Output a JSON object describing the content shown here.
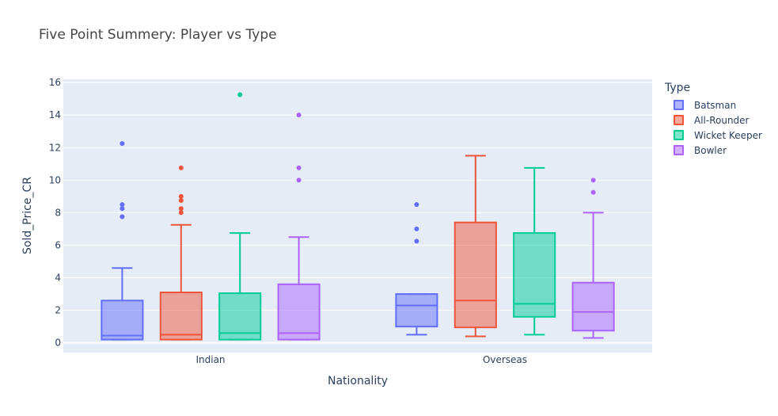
{
  "chart_data": {
    "type": "box",
    "title": "Five Point Summery: Player vs Type",
    "xlabel": "Nationality",
    "ylabel": "Sold_Price_CR",
    "categories": [
      "Indian",
      "Overseas"
    ],
    "ylim": [
      -0.6,
      16.2
    ],
    "yticks": [
      0,
      2,
      4,
      6,
      8,
      10,
      12,
      14,
      16
    ],
    "legend_title": "Type",
    "legend_position": "right",
    "grid": true,
    "series": [
      {
        "name": "Batsman",
        "color": "#636efa",
        "boxes": [
          {
            "category": "Indian",
            "min": 0.2,
            "q1": 0.2,
            "median": 0.45,
            "q3": 2.6,
            "max": 4.6,
            "outliers": [
              7.75,
              8.25,
              8.5,
              12.25
            ]
          },
          {
            "category": "Overseas",
            "min": 0.5,
            "q1": 1.0,
            "median": 2.3,
            "q3": 3.0,
            "max": 3.0,
            "outliers": [
              6.25,
              7.0,
              8.5
            ]
          }
        ]
      },
      {
        "name": "All-Rounder",
        "color": "#ef553b",
        "boxes": [
          {
            "category": "Indian",
            "min": 0.2,
            "q1": 0.2,
            "median": 0.5,
            "q3": 3.1,
            "max": 7.25,
            "outliers": [
              8.0,
              8.25,
              8.75,
              9.0,
              10.75
            ]
          },
          {
            "category": "Overseas",
            "min": 0.4,
            "q1": 0.95,
            "median": 2.6,
            "q3": 7.4,
            "max": 11.5,
            "outliers": []
          }
        ]
      },
      {
        "name": "Wicket Keeper",
        "color": "#00cc96",
        "boxes": [
          {
            "category": "Indian",
            "min": 0.2,
            "q1": 0.2,
            "median": 0.6,
            "q3": 3.05,
            "max": 6.75,
            "outliers": [
              15.25
            ]
          },
          {
            "category": "Overseas",
            "min": 0.5,
            "q1": 1.6,
            "median": 2.4,
            "q3": 6.75,
            "max": 10.75,
            "outliers": []
          }
        ]
      },
      {
        "name": "Bowler",
        "color": "#ab63fa",
        "boxes": [
          {
            "category": "Indian",
            "min": 0.2,
            "q1": 0.2,
            "median": 0.6,
            "q3": 3.6,
            "max": 6.5,
            "outliers": [
              10.0,
              10.75,
              14.0
            ]
          },
          {
            "category": "Overseas",
            "min": 0.3,
            "q1": 0.75,
            "median": 1.9,
            "q3": 3.7,
            "max": 8.0,
            "outliers": [
              9.25,
              10.0
            ]
          }
        ]
      }
    ]
  }
}
